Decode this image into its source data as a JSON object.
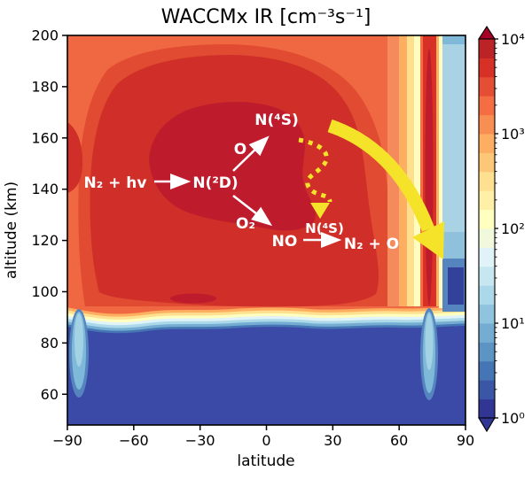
{
  "title": "WACCMx IR [cm⁻³s⁻¹]",
  "axes": {
    "xlabel": "latitude",
    "ylabel": "altitude (km)",
    "xlim": [
      -90,
      90
    ],
    "ylim": [
      48,
      200
    ],
    "xticks": [
      -90,
      -60,
      -30,
      0,
      30,
      60,
      90
    ],
    "xtick_labels": [
      "−90",
      "−60",
      "−30",
      "0",
      "30",
      "60",
      "90"
    ],
    "yticks": [
      200,
      180,
      160,
      140,
      120,
      100,
      80,
      60
    ],
    "ytick_labels": [
      "200",
      "180",
      "160",
      "140",
      "120",
      "100",
      "80",
      "60"
    ]
  },
  "colorbar": {
    "scale": "log",
    "range": [
      1,
      10000
    ],
    "tick_values": [
      1,
      10,
      100,
      1000,
      10000
    ],
    "tick_labels": [
      "10⁰",
      "10¹",
      "10²",
      "10³",
      "10⁴"
    ],
    "colormap": "RdYlBu_r",
    "band_colors": [
      "#313695",
      "#3B56A6",
      "#4575B4",
      "#5C94C3",
      "#74ADD1",
      "#90C3DD",
      "#ABD9E9",
      "#C6E6F0",
      "#E0F3F8",
      "#F0F9DB",
      "#FFFFBF",
      "#FEF0A7",
      "#FEE090",
      "#FDC778",
      "#FDAE61",
      "#F98E52",
      "#F46D43",
      "#E54E35",
      "#D73027",
      "#BC2327"
    ],
    "arrow_top_color": "#A50026",
    "arrow_bottom_color": "#313695"
  },
  "palette": {
    "base_orange": "#EF6841",
    "mid_red": "#E04B31",
    "dark_red": "#CF2F28",
    "darkest_red": "#BE1B2D",
    "bottom_blue": "#3A4AA6",
    "navy_patch": "#33419B",
    "plume_light_blue": "#7FB9DA",
    "plume_core": "#A3D2E5",
    "annotation_white": "#FFFFFF",
    "yellow_arrow": "#F5E32A"
  },
  "annotations": {
    "n2_hv": "N₂ + hv",
    "n2d": "N(²D)",
    "o": "O",
    "o2": "O₂",
    "n4s_upper": "N(⁴S)",
    "no": "NO",
    "n4s_lower": "N(⁴S)",
    "n2_o": "N₂ + O"
  },
  "chart_data": {
    "type": "heatmap",
    "title": "WACCMx IR [cm⁻³s⁻¹]",
    "xlabel": "latitude",
    "ylabel": "altitude (km)",
    "value_units": "cm⁻³s⁻¹",
    "value_scale": "log10",
    "latitudes": [
      -90,
      -85,
      -75,
      -60,
      -45,
      -30,
      -15,
      0,
      15,
      30,
      45,
      60,
      65,
      70,
      73,
      77,
      82,
      90
    ],
    "altitudes_km": [
      60,
      80,
      90,
      95,
      100,
      110,
      120,
      140,
      160,
      180,
      200
    ],
    "log10_values": [
      [
        0.0,
        0.9,
        0.0,
        0.0,
        0.0,
        0.0,
        0.0,
        0.0,
        0.0,
        0.0,
        0.0,
        0.0,
        0.0,
        0.0,
        0.9,
        0.0,
        0.0,
        0.0
      ],
      [
        0.0,
        1.1,
        0.1,
        0.0,
        0.0,
        0.0,
        0.0,
        0.0,
        0.0,
        0.0,
        0.0,
        0.0,
        0.0,
        0.0,
        1.1,
        0.0,
        0.0,
        0.0
      ],
      [
        0.3,
        1.2,
        0.5,
        0.4,
        0.5,
        0.6,
        0.5,
        0.5,
        0.5,
        0.4,
        0.4,
        0.3,
        0.4,
        0.6,
        1.3,
        0.5,
        0.2,
        0.2
      ],
      [
        2.0,
        2.2,
        2.4,
        2.5,
        2.6,
        2.8,
        2.7,
        2.6,
        2.6,
        2.5,
        2.4,
        2.0,
        1.8,
        2.0,
        2.6,
        1.2,
        0.6,
        0.5
      ],
      [
        3.1,
        3.2,
        3.3,
        3.5,
        3.6,
        3.7,
        3.6,
        3.5,
        3.4,
        3.3,
        3.2,
        2.8,
        2.4,
        2.6,
        3.5,
        1.5,
        0.8,
        0.7
      ],
      [
        3.2,
        3.3,
        3.4,
        3.5,
        3.6,
        3.6,
        3.6,
        3.5,
        3.5,
        3.4,
        3.2,
        2.9,
        2.5,
        2.7,
        3.6,
        1.4,
        0.9,
        0.8
      ],
      [
        3.2,
        3.3,
        3.5,
        3.6,
        3.7,
        3.8,
        3.8,
        3.7,
        3.6,
        3.4,
        3.2,
        2.9,
        2.5,
        2.7,
        3.6,
        1.3,
        0.9,
        0.8
      ],
      [
        3.2,
        3.3,
        3.5,
        3.7,
        3.8,
        3.9,
        3.8,
        3.7,
        3.6,
        3.5,
        3.3,
        2.9,
        2.6,
        2.8,
        3.5,
        1.5,
        1.1,
        1.0
      ],
      [
        3.2,
        3.3,
        3.5,
        3.6,
        3.8,
        3.8,
        3.8,
        3.7,
        3.5,
        3.4,
        3.2,
        2.9,
        2.6,
        2.8,
        3.4,
        1.6,
        1.2,
        1.1
      ],
      [
        3.1,
        3.2,
        3.4,
        3.5,
        3.6,
        3.6,
        3.5,
        3.4,
        3.3,
        3.2,
        3.1,
        2.8,
        2.6,
        2.8,
        3.3,
        1.5,
        1.1,
        1.0
      ],
      [
        3.1,
        3.1,
        3.2,
        3.3,
        3.3,
        3.3,
        3.3,
        3.2,
        3.2,
        3.1,
        3.0,
        2.8,
        2.6,
        2.8,
        3.2,
        1.3,
        0.9,
        0.8
      ]
    ],
    "features": [
      "broad dark-red maximum (~10^3.5–10^4) at 110–180 km between −75 and +45 latitude",
      "sharp transition to dark blue (~10^0) below ~92 km at all latitudes",
      "light-blue downward plume near latitude −85 from ~90 km to ~65 km",
      "light-blue downward plume near latitude +73 from ~100 km to ~65 km",
      "narrow red auroral column near latitude +73 spanning 100–200 km",
      "light-blue low-emission region poleward of +77 latitude at 100–200 km",
      "yellow curved arrow indicating transport from mid-latitude thermosphere toward high-latitude lower thermosphere",
      "yellow dashed squiggle arrow descending from N(4S) production region toward NO"
    ],
    "legend_position": "right colorbar"
  }
}
